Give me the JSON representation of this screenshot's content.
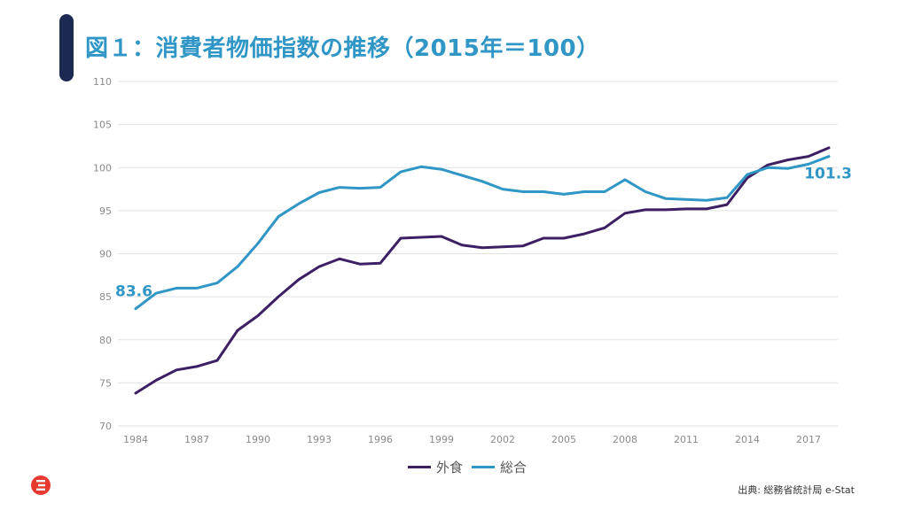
{
  "title": "図１：消費者物価指数の推移（2015年＝100）",
  "source": "出典: 総務省統計局 e-Stat",
  "colors": {
    "title": "#2f96c6",
    "accent_bar": "#1c2a52",
    "series_gaishoku": "#3d1f63",
    "series_sougou": "#2f96c6",
    "logo": "#e8392f"
  },
  "logo_icon": "brand-logo-icon",
  "chart_data": {
    "type": "line",
    "x": [
      1984,
      1985,
      1986,
      1987,
      1988,
      1989,
      1990,
      1991,
      1992,
      1993,
      1994,
      1995,
      1996,
      1997,
      1998,
      1999,
      2000,
      2001,
      2002,
      2003,
      2004,
      2005,
      2006,
      2007,
      2008,
      2009,
      2010,
      2011,
      2012,
      2013,
      2014,
      2015,
      2016,
      2017,
      2018
    ],
    "x_ticks": [
      "1984",
      "1987",
      "1990",
      "1993",
      "1996",
      "1999",
      "2002",
      "2005",
      "2008",
      "2011",
      "2014",
      "2017"
    ],
    "y_ticks": [
      "70",
      "75",
      "80",
      "85",
      "90",
      "95",
      "100",
      "105",
      "110"
    ],
    "ylim": [
      70,
      110
    ],
    "xlim": [
      1984,
      2018
    ],
    "grid": true,
    "legend_position": "bottom",
    "series": [
      {
        "name": "外食",
        "values": [
          73.8,
          75.3,
          76.5,
          76.9,
          77.6,
          81.1,
          82.8,
          85.0,
          87.0,
          88.5,
          89.4,
          88.8,
          88.9,
          91.8,
          91.9,
          92.0,
          91.0,
          90.7,
          90.8,
          90.9,
          91.8,
          91.8,
          92.3,
          93.0,
          94.7,
          95.1,
          95.1,
          95.2,
          95.2,
          95.7,
          98.8,
          100.3,
          100.9,
          101.3,
          102.3
        ]
      },
      {
        "name": "総合",
        "values": [
          83.6,
          85.4,
          86.0,
          86.0,
          86.6,
          88.5,
          91.2,
          94.3,
          95.8,
          97.1,
          97.7,
          97.6,
          97.7,
          99.5,
          100.1,
          99.8,
          99.1,
          98.4,
          97.5,
          97.2,
          97.2,
          96.9,
          97.2,
          97.2,
          98.6,
          97.2,
          96.4,
          96.3,
          96.2,
          96.5,
          99.2,
          100.0,
          99.9,
          100.4,
          101.3
        ]
      }
    ],
    "annotations": [
      "83.6",
      "101.3"
    ]
  }
}
